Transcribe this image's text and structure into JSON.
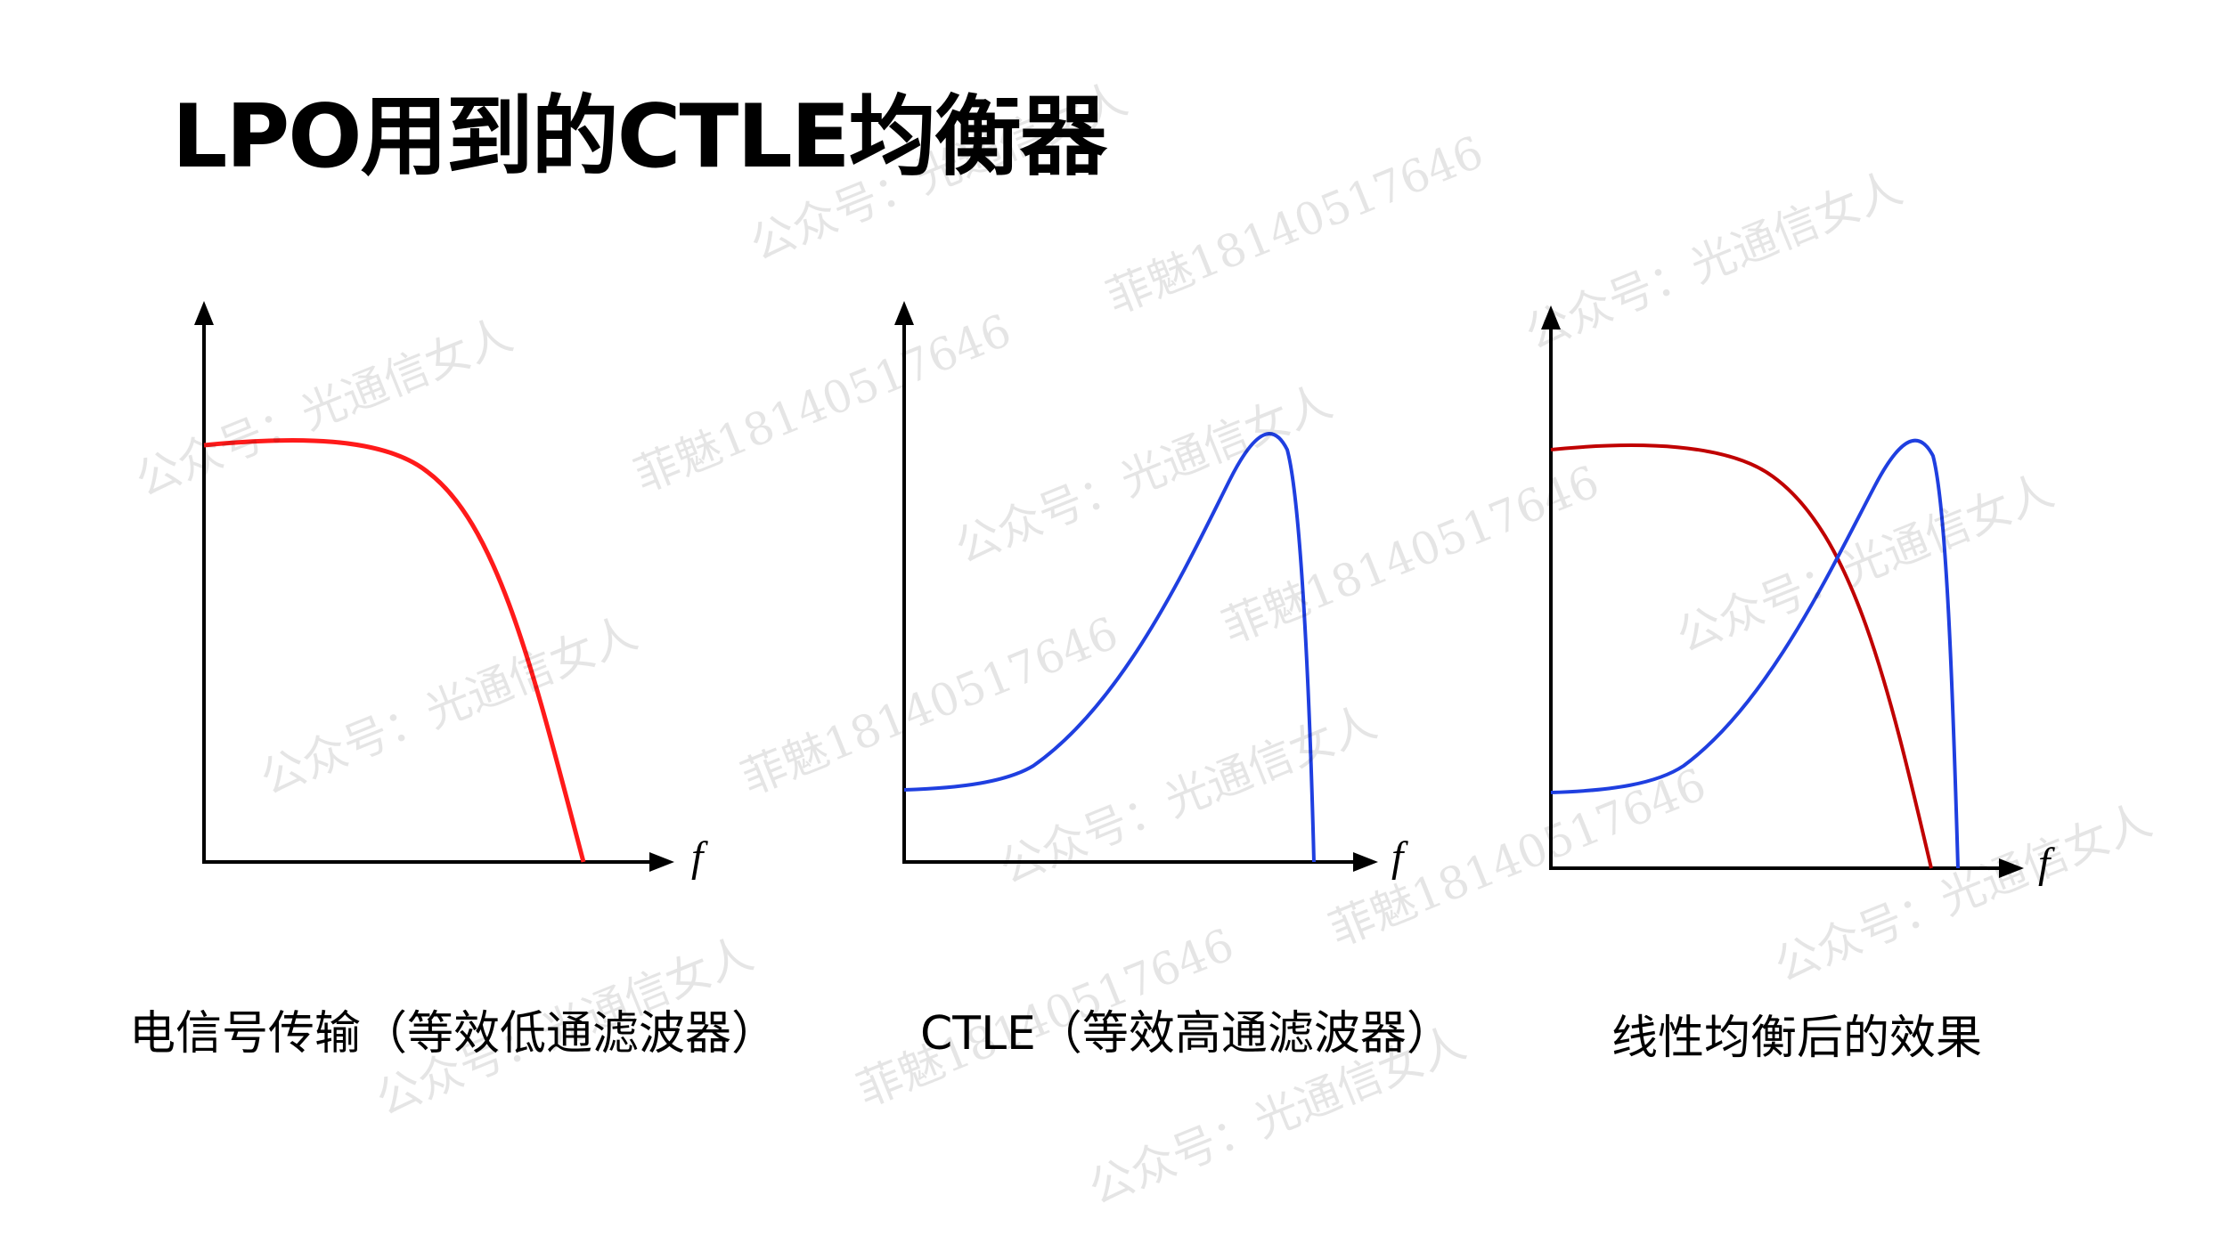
{
  "title": "LPO用到的CTLE均衡器",
  "panels": [
    {
      "caption": "电信号传输（等效低通滤波器）",
      "x_axis_label": "f"
    },
    {
      "caption": "CTLE（等效高通滤波器）",
      "x_axis_label": "f"
    },
    {
      "caption": "线性均衡后的效果",
      "x_axis_label": "f"
    }
  ],
  "watermarks": [
    "公众号：光通信女人",
    "菲魅18140517646"
  ],
  "colors": {
    "lowpass_curve": "#ff1a1a",
    "lowpass_curve_combined": "#c00000",
    "highpass_curve": "#1f3fe0",
    "axis": "#000000"
  }
}
